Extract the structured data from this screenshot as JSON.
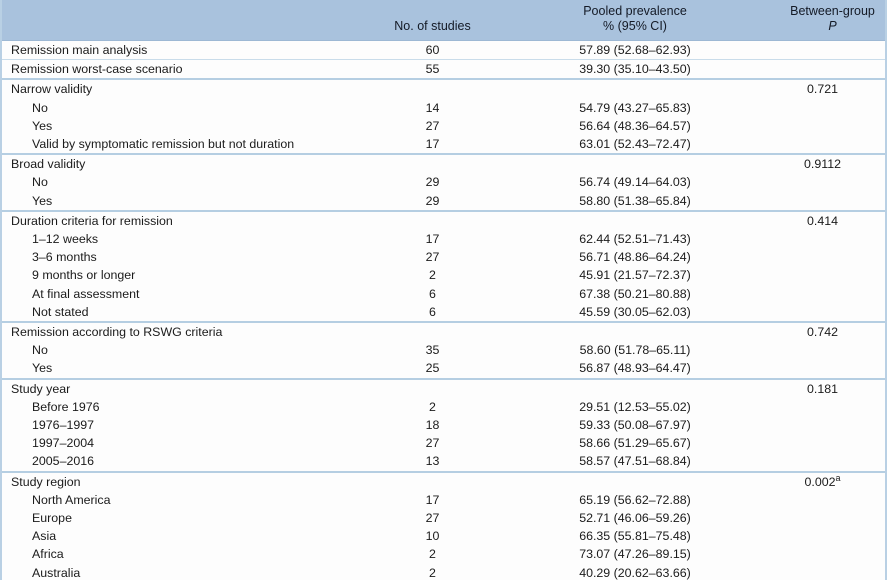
{
  "table": {
    "columns": {
      "label": "",
      "studies": "No. of studies",
      "prevalence_line1": "Pooled prevalence",
      "prevalence_line2": "% (95% CI)",
      "p_line1": "Between-group",
      "p_line2": "P"
    },
    "rows": [
      {
        "label": "Remission main analysis",
        "indent": false,
        "studies": "60",
        "prevalence": "57.89 (52.68–62.93)",
        "p": "",
        "border": "none"
      },
      {
        "label": "Remission worst-case scenario",
        "indent": false,
        "studies": "55",
        "prevalence": "39.30 (35.10–43.50)",
        "p": "",
        "border": "thin"
      },
      {
        "label": "Narrow validity",
        "indent": false,
        "studies": "",
        "prevalence": "",
        "p": "0.721",
        "border": "section"
      },
      {
        "label": "No",
        "indent": true,
        "studies": "14",
        "prevalence": "54.79 (43.27–65.83)",
        "p": "",
        "border": "none"
      },
      {
        "label": "Yes",
        "indent": true,
        "studies": "27",
        "prevalence": "56.64 (48.36–64.57)",
        "p": "",
        "border": "none"
      },
      {
        "label": "Valid by symptomatic remission but not duration",
        "indent": true,
        "studies": "17",
        "prevalence": "63.01 (52.43–72.47)",
        "p": "",
        "border": "none"
      },
      {
        "label": "Broad validity",
        "indent": false,
        "studies": "",
        "prevalence": "",
        "p": "0.9112",
        "border": "section"
      },
      {
        "label": "No",
        "indent": true,
        "studies": "29",
        "prevalence": "56.74 (49.14–64.03)",
        "p": "",
        "border": "none"
      },
      {
        "label": "Yes",
        "indent": true,
        "studies": "29",
        "prevalence": "58.80 (51.38–65.84)",
        "p": "",
        "border": "none"
      },
      {
        "label": "Duration criteria for remission",
        "indent": false,
        "studies": "",
        "prevalence": "",
        "p": "0.414",
        "border": "section"
      },
      {
        "label": "1–12 weeks",
        "indent": true,
        "studies": "17",
        "prevalence": "62.44 (52.51–71.43)",
        "p": "",
        "border": "none"
      },
      {
        "label": "3–6 months",
        "indent": true,
        "studies": "27",
        "prevalence": "56.71 (48.86–64.24)",
        "p": "",
        "border": "none"
      },
      {
        "label": "9 months or longer",
        "indent": true,
        "studies": "2",
        "prevalence": "45.91 (21.57–72.37)",
        "p": "",
        "border": "none"
      },
      {
        "label": "At final assessment",
        "indent": true,
        "studies": "6",
        "prevalence": "67.38 (50.21–80.88)",
        "p": "",
        "border": "none"
      },
      {
        "label": "Not stated",
        "indent": true,
        "studies": "6",
        "prevalence": "45.59 (30.05–62.03)",
        "p": "",
        "border": "none"
      },
      {
        "label": "Remission according to RSWG criteria",
        "indent": false,
        "studies": "",
        "prevalence": "",
        "p": "0.742",
        "border": "section"
      },
      {
        "label": "No",
        "indent": true,
        "studies": "35",
        "prevalence": "58.60 (51.78–65.11)",
        "p": "",
        "border": "none"
      },
      {
        "label": "Yes",
        "indent": true,
        "studies": "25",
        "prevalence": "56.87 (48.93–64.47)",
        "p": "",
        "border": "none"
      },
      {
        "label": "Study year",
        "indent": false,
        "studies": "",
        "prevalence": "",
        "p": "0.181",
        "border": "section"
      },
      {
        "label": "Before 1976",
        "indent": true,
        "studies": "2",
        "prevalence": "29.51 (12.53–55.02)",
        "p": "",
        "border": "none"
      },
      {
        "label": "1976–1997",
        "indent": true,
        "studies": "18",
        "prevalence": "59.33 (50.08–67.97)",
        "p": "",
        "border": "none"
      },
      {
        "label": "1997–2004",
        "indent": true,
        "studies": "27",
        "prevalence": "58.66 (51.29–65.67)",
        "p": "",
        "border": "none"
      },
      {
        "label": "2005–2016",
        "indent": true,
        "studies": "13",
        "prevalence": "58.57 (47.51–68.84)",
        "p": "",
        "border": "none"
      },
      {
        "label": "Study region",
        "indent": false,
        "studies": "",
        "prevalence": "",
        "p": "0.002",
        "p_sup": "a",
        "border": "section"
      },
      {
        "label": "North America",
        "indent": true,
        "studies": "17",
        "prevalence": "65.19 (56.62–72.88)",
        "p": "",
        "border": "none"
      },
      {
        "label": "Europe",
        "indent": true,
        "studies": "27",
        "prevalence": "52.71 (46.06–59.26)",
        "p": "",
        "border": "none"
      },
      {
        "label": "Asia",
        "indent": true,
        "studies": "10",
        "prevalence": "66.35 (55.81–75.48)",
        "p": "",
        "border": "none"
      },
      {
        "label": "Africa",
        "indent": true,
        "studies": "2",
        "prevalence": "73.07 (47.26–89.15)",
        "p": "",
        "border": "none"
      },
      {
        "label": "Australia",
        "indent": true,
        "studies": "2",
        "prevalence": "40.29 (20.62–63.66)",
        "p": "",
        "border": "none"
      }
    ]
  },
  "colors": {
    "header_bg": "#a9c2dd",
    "section_divider": "#b5cee2",
    "thin_divider": "#c9dcea",
    "footer_strip_bg": "#dfeaf3",
    "text": "#1b1b1b"
  }
}
